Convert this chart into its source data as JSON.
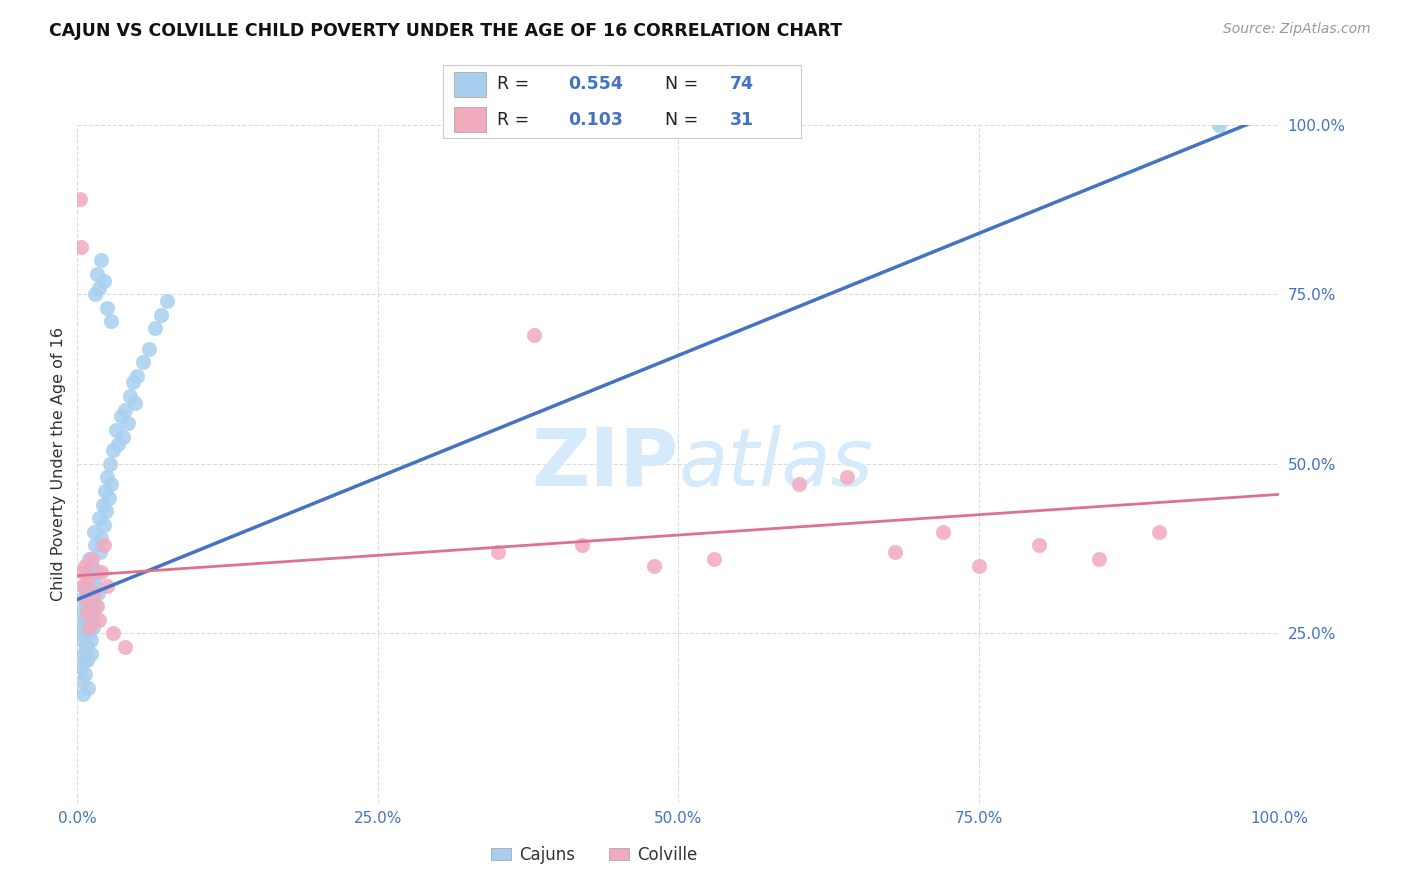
{
  "title": "CAJUN VS COLVILLE CHILD POVERTY UNDER THE AGE OF 16 CORRELATION CHART",
  "source": "Source: ZipAtlas.com",
  "ylabel": "Child Poverty Under the Age of 16",
  "cajun_color": "#A8CFEE",
  "colville_color": "#F2AABF",
  "cajun_line_color": "#4472C4",
  "colville_line_color": "#E07090",
  "background_color": "#FFFFFF",
  "grid_color": "#CCCCCC",
  "tick_color": "#4472C4",
  "watermark_color": "#D5EAFA",
  "legend_r_n_color": "#4472C4",
  "legend_text_color": "#222222",
  "cajun_trendline_x": [
    0.0,
    1.0
  ],
  "cajun_trendline_y": [
    0.3,
    1.02
  ],
  "colville_trendline_x": [
    0.0,
    1.0
  ],
  "colville_trendline_y": [
    0.335,
    0.455
  ],
  "cajun_x": [
    0.002,
    0.003,
    0.004,
    0.004,
    0.005,
    0.005,
    0.005,
    0.006,
    0.006,
    0.007,
    0.007,
    0.008,
    0.008,
    0.009,
    0.009,
    0.01,
    0.01,
    0.011,
    0.012,
    0.012,
    0.013,
    0.014,
    0.014,
    0.015,
    0.015,
    0.016,
    0.017,
    0.018,
    0.019,
    0.02,
    0.021,
    0.022,
    0.023,
    0.024,
    0.025,
    0.026,
    0.027,
    0.028,
    0.03,
    0.032,
    0.034,
    0.036,
    0.038,
    0.04,
    0.042,
    0.044,
    0.046,
    0.048,
    0.05,
    0.055,
    0.06,
    0.065,
    0.07,
    0.075,
    0.003,
    0.004,
    0.005,
    0.006,
    0.007,
    0.008,
    0.009,
    0.01,
    0.011,
    0.012,
    0.013,
    0.014,
    0.015,
    0.016,
    0.018,
    0.02,
    0.022,
    0.025,
    0.028,
    0.95
  ],
  "cajun_y": [
    0.28,
    0.26,
    0.24,
    0.3,
    0.22,
    0.25,
    0.32,
    0.21,
    0.27,
    0.29,
    0.34,
    0.31,
    0.23,
    0.28,
    0.33,
    0.26,
    0.36,
    0.24,
    0.3,
    0.35,
    0.27,
    0.32,
    0.4,
    0.29,
    0.38,
    0.34,
    0.31,
    0.42,
    0.37,
    0.39,
    0.44,
    0.41,
    0.46,
    0.43,
    0.48,
    0.45,
    0.5,
    0.47,
    0.52,
    0.55,
    0.53,
    0.57,
    0.54,
    0.58,
    0.56,
    0.6,
    0.62,
    0.59,
    0.63,
    0.65,
    0.67,
    0.7,
    0.72,
    0.74,
    0.2,
    0.18,
    0.16,
    0.19,
    0.23,
    0.21,
    0.17,
    0.25,
    0.22,
    0.28,
    0.26,
    0.33,
    0.75,
    0.78,
    0.76,
    0.8,
    0.77,
    0.73,
    0.71,
    1.0
  ],
  "colville_x": [
    0.002,
    0.003,
    0.004,
    0.005,
    0.006,
    0.007,
    0.008,
    0.009,
    0.01,
    0.012,
    0.014,
    0.016,
    0.018,
    0.02,
    0.022,
    0.025,
    0.03,
    0.04,
    0.35,
    0.38,
    0.42,
    0.48,
    0.53,
    0.6,
    0.64,
    0.68,
    0.72,
    0.75,
    0.8,
    0.85,
    0.9
  ],
  "colville_y": [
    0.89,
    0.82,
    0.34,
    0.32,
    0.35,
    0.3,
    0.28,
    0.33,
    0.26,
    0.36,
    0.31,
    0.29,
    0.27,
    0.34,
    0.38,
    0.32,
    0.25,
    0.23,
    0.37,
    0.69,
    0.38,
    0.35,
    0.36,
    0.47,
    0.48,
    0.37,
    0.4,
    0.35,
    0.38,
    0.36,
    0.4
  ],
  "x_ticks": [
    0.0,
    0.25,
    0.5,
    0.75,
    1.0
  ],
  "y_ticks": [
    0.0,
    0.25,
    0.5,
    0.75,
    1.0
  ],
  "x_tick_labels": [
    "0.0%",
    "25.0%",
    "50.0%",
    "75.0%",
    "100.0%"
  ],
  "y_tick_labels": [
    "",
    "25.0%",
    "50.0%",
    "75.0%",
    "100.0%"
  ]
}
